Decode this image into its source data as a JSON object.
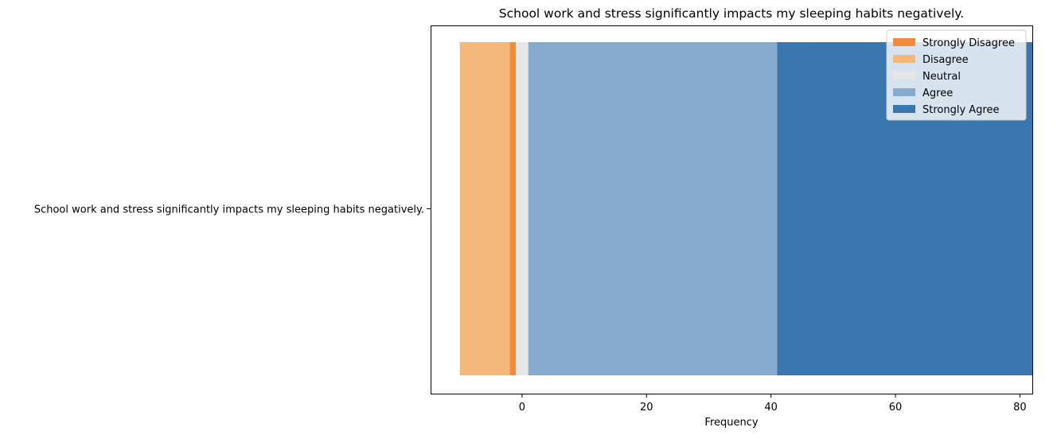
{
  "chart_data": {
    "type": "bar",
    "orientation": "horizontal",
    "stacked": true,
    "diverging": true,
    "title": "School work and stress significantly impacts my sleeping habits negatively.",
    "xlabel": "Frequency",
    "ylabel": "",
    "categories": [
      "School work and stress significantly impacts my sleeping habits negatively."
    ],
    "xlim": [
      -14.7,
      82
    ],
    "xticks": [
      0,
      20,
      40,
      60,
      80
    ],
    "grid": false,
    "legend_position": "top-right",
    "series": [
      {
        "name": "Strongly Disagree",
        "color": "#F28B3A",
        "start": -2,
        "end": -1
      },
      {
        "name": "Disagree",
        "color": "#F4B97A",
        "start": -10,
        "end": -2
      },
      {
        "name": "Neutral",
        "color": "#E6E6E6",
        "start": -1,
        "end": 1
      },
      {
        "name": "Agree",
        "color": "#86ABCE",
        "start": 1,
        "end": 41
      },
      {
        "name": "Strongly Agree",
        "color": "#3A76B0",
        "start": 41,
        "end": 82
      }
    ]
  }
}
